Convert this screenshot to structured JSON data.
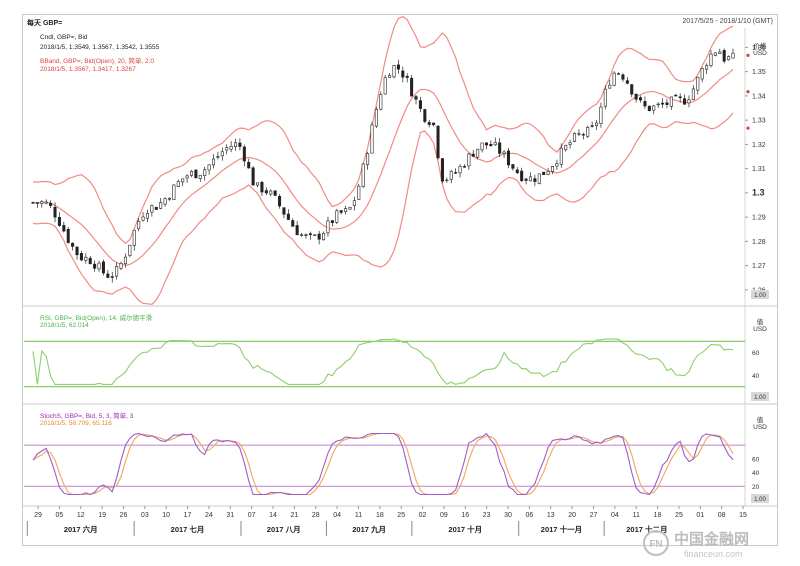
{
  "header": {
    "title": "每天 GBP=",
    "date_range": "2017/5/25 - 2018/1/10 (GMT)"
  },
  "price_panel": {
    "legend": [
      {
        "text": "Cndl, GBP=, Bid",
        "color": "#222222"
      },
      {
        "text": "2018/1/5, 1.3549, 1.3567, 1.3542, 1.3555",
        "color": "#222222"
      },
      {
        "text": "BBand, GBP=, Bid(Open), 20, 简单, 2.0",
        "color": "#d9433d"
      },
      {
        "text": "2018/1/5, 1.3567, 1.3417, 1.3267",
        "color": "#d9433d"
      }
    ],
    "axis_title_1": "价格",
    "axis_title_2": "USD",
    "yticks": [
      "1.36",
      "1.35",
      "1.34",
      "1.33",
      "1.32",
      "1.31",
      "1.3",
      "1.29",
      "1.28",
      "1.27",
      "1.26"
    ],
    "ylim": [
      1.255,
      1.368
    ],
    "scale_badge": "1.00"
  },
  "rsi_panel": {
    "legend": [
      {
        "text": "RSI, GBP=, Bid(Open), 14, 威尔德平滑",
        "color": "#4caf50"
      },
      {
        "text": "2018/1/5, 62.014",
        "color": "#4caf50"
      }
    ],
    "axis_title_1": "值",
    "axis_title_2": "USD",
    "yticks": [
      "60",
      "40"
    ],
    "ylim": [
      20,
      80
    ],
    "scale_badge": "1.00"
  },
  "stoch_panel": {
    "legend": [
      {
        "text": "StochS, GBP=, Bid, 5, 3, 简单, 3",
        "color": "#9c27b0"
      },
      {
        "text": "2018/1/5, 58.709, 65.116",
        "color": "#e68a2e"
      }
    ],
    "axis_title_1": "值",
    "axis_title_2": "USD",
    "yticks": [
      "60",
      "40",
      "20"
    ],
    "ylim": [
      0,
      105
    ],
    "scale_badge": "1.00"
  },
  "xaxis": {
    "day_ticks": [
      "29",
      "05",
      "12",
      "19",
      "26",
      "03",
      "10",
      "17",
      "24",
      "31",
      "07",
      "14",
      "21",
      "28",
      "04",
      "11",
      "18",
      "25",
      "02",
      "09",
      "16",
      "23",
      "30",
      "06",
      "13",
      "20",
      "27",
      "04",
      "11",
      "18",
      "25",
      "01",
      "08",
      "15"
    ],
    "months": [
      "2017 六月",
      "2017 七月",
      "2017 八月",
      "2017 九月",
      "2017 十月",
      "2017 十一月",
      "2017 十二月"
    ]
  },
  "watermark": {
    "brand": "中国金融网",
    "url": "financeun.com"
  },
  "colors": {
    "candle": "#222222",
    "bband": "#f28a84",
    "rsi": "#8ccf6e",
    "rsi_level": "#7ac857",
    "stoch_k": "#9c5fc8",
    "stoch_d": "#f0a65a",
    "stoch_level": "#c98fd1"
  },
  "chart_data": [
    {
      "type": "candlestick",
      "title": "Cndl, GBP=, Bid",
      "ylabel": "价格 USD",
      "x_range": [
        "2017-05-25",
        "2018-01-10"
      ],
      "ylim": [
        1.255,
        1.368
      ],
      "key_points": [
        {
          "date": "2017-05-29",
          "close": 1.296
        },
        {
          "date": "2017-06-12",
          "close": 1.273
        },
        {
          "date": "2017-06-20",
          "close": 1.266
        },
        {
          "date": "2017-07-03",
          "close": 1.294
        },
        {
          "date": "2017-07-17",
          "close": 1.308
        },
        {
          "date": "2017-07-31",
          "close": 1.32
        },
        {
          "date": "2017-08-07",
          "close": 1.302
        },
        {
          "date": "2017-08-24",
          "close": 1.281
        },
        {
          "date": "2017-09-04",
          "close": 1.292
        },
        {
          "date": "2017-09-20",
          "close": 1.352
        },
        {
          "date": "2017-10-02",
          "close": 1.33
        },
        {
          "date": "2017-10-06",
          "close": 1.306
        },
        {
          "date": "2017-10-20",
          "close": 1.32
        },
        {
          "date": "2017-11-03",
          "close": 1.306
        },
        {
          "date": "2017-11-22",
          "close": 1.325
        },
        {
          "date": "2017-12-01",
          "close": 1.35
        },
        {
          "date": "2017-12-11",
          "close": 1.335
        },
        {
          "date": "2017-12-22",
          "close": 1.338
        },
        {
          "date": "2018-01-03",
          "close": 1.359
        },
        {
          "date": "2018-01-05",
          "close": 1.3555
        }
      ],
      "bollinger": {
        "upper_last": 1.3567,
        "middle_last": 1.3417,
        "lower_last": 1.3267
      }
    },
    {
      "type": "line",
      "title": "RSI, GBP=, Bid(Open), 14",
      "ylim": [
        20,
        80
      ],
      "levels": [
        70,
        30
      ],
      "last": 62.014
    },
    {
      "type": "line",
      "title": "StochS, GBP=, Bid, 5, 3",
      "ylim": [
        0,
        105
      ],
      "levels": [
        80,
        20
      ],
      "series": [
        {
          "name": "%K",
          "last": 58.709
        },
        {
          "name": "%D",
          "last": 65.116
        }
      ]
    }
  ]
}
